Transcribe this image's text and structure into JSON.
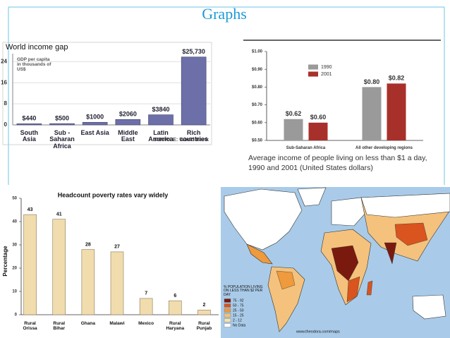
{
  "title": "Graphs",
  "chart_data": [
    {
      "type": "bar",
      "title": "World income gap",
      "ylabel": "GDP per capita in thousands of US$",
      "categories": [
        "South Asia",
        "Sub -Saharan Africa",
        "East Asia",
        "Middle East",
        "Latin America",
        "Rich countries"
      ],
      "values": [
        0.44,
        0.5,
        1.0,
        2.06,
        3.84,
        25.73
      ],
      "value_labels": [
        "$440",
        "$500",
        "$1000",
        "$2060",
        "$3840",
        "$25,730"
      ],
      "color": "#6c6fa8",
      "ylim": [
        0,
        27
      ],
      "yticks": [
        0,
        8,
        16,
        24
      ],
      "grid": true,
      "source": "SOURCE: World Bank"
    },
    {
      "type": "bar",
      "caption": "Average income of people living on less than $1 a day, 1990 and 2001 (United States dollars)",
      "categories": [
        "Sub-Saharan Africa",
        "All other developing regions"
      ],
      "series": [
        {
          "name": "1990",
          "color": "#9a9a9a",
          "values": [
            0.62,
            0.8
          ],
          "value_labels": [
            "$0.62",
            "$0.80"
          ]
        },
        {
          "name": "2001",
          "color": "#a8302a",
          "values": [
            0.6,
            0.82
          ],
          "value_labels": [
            "$0.60",
            "$0.82"
          ]
        }
      ],
      "ylim": [
        0.5,
        1.0
      ],
      "yticks": [
        {
          "value": 0.5,
          "label": "$0.50"
        },
        {
          "value": 0.6,
          "label": "$0.60"
        },
        {
          "value": 0.7,
          "label": "$0.70"
        },
        {
          "value": 0.8,
          "label": "$0.80"
        },
        {
          "value": 0.9,
          "label": "$0.90"
        },
        {
          "value": 1.0,
          "label": "$1.00"
        }
      ],
      "grid": false
    },
    {
      "type": "bar",
      "title": "Headcount poverty rates vary widely",
      "ylabel": "Percentage",
      "categories": [
        "Rural Orissa",
        "Rural Bihar",
        "Ghana",
        "Malawi",
        "Mexico",
        "Rural Haryana",
        "Rural Punjab"
      ],
      "values": [
        43,
        41,
        28,
        27,
        7,
        6,
        2
      ],
      "color": "#f1dcae",
      "ylim": [
        0,
        50
      ],
      "yticks": [
        0,
        10,
        20,
        30,
        40,
        50
      ],
      "grid": false
    }
  ],
  "map": {
    "legend_title": "% POPULATION LIVING ON LESS THAN $2 PER DAY",
    "legend": [
      {
        "label": "75 - 92",
        "color": "#7a1a0e"
      },
      {
        "label": "50 - 75",
        "color": "#d9541e"
      },
      {
        "label": "25 - 50",
        "color": "#ef9a3c"
      },
      {
        "label": "15 - 25",
        "color": "#f4c27c"
      },
      {
        "label": "2 - 12",
        "color": "#f8e2ad"
      },
      {
        "label": "No Data",
        "color": "#ffffff"
      }
    ],
    "credit": "www.theodora.com/maps"
  }
}
